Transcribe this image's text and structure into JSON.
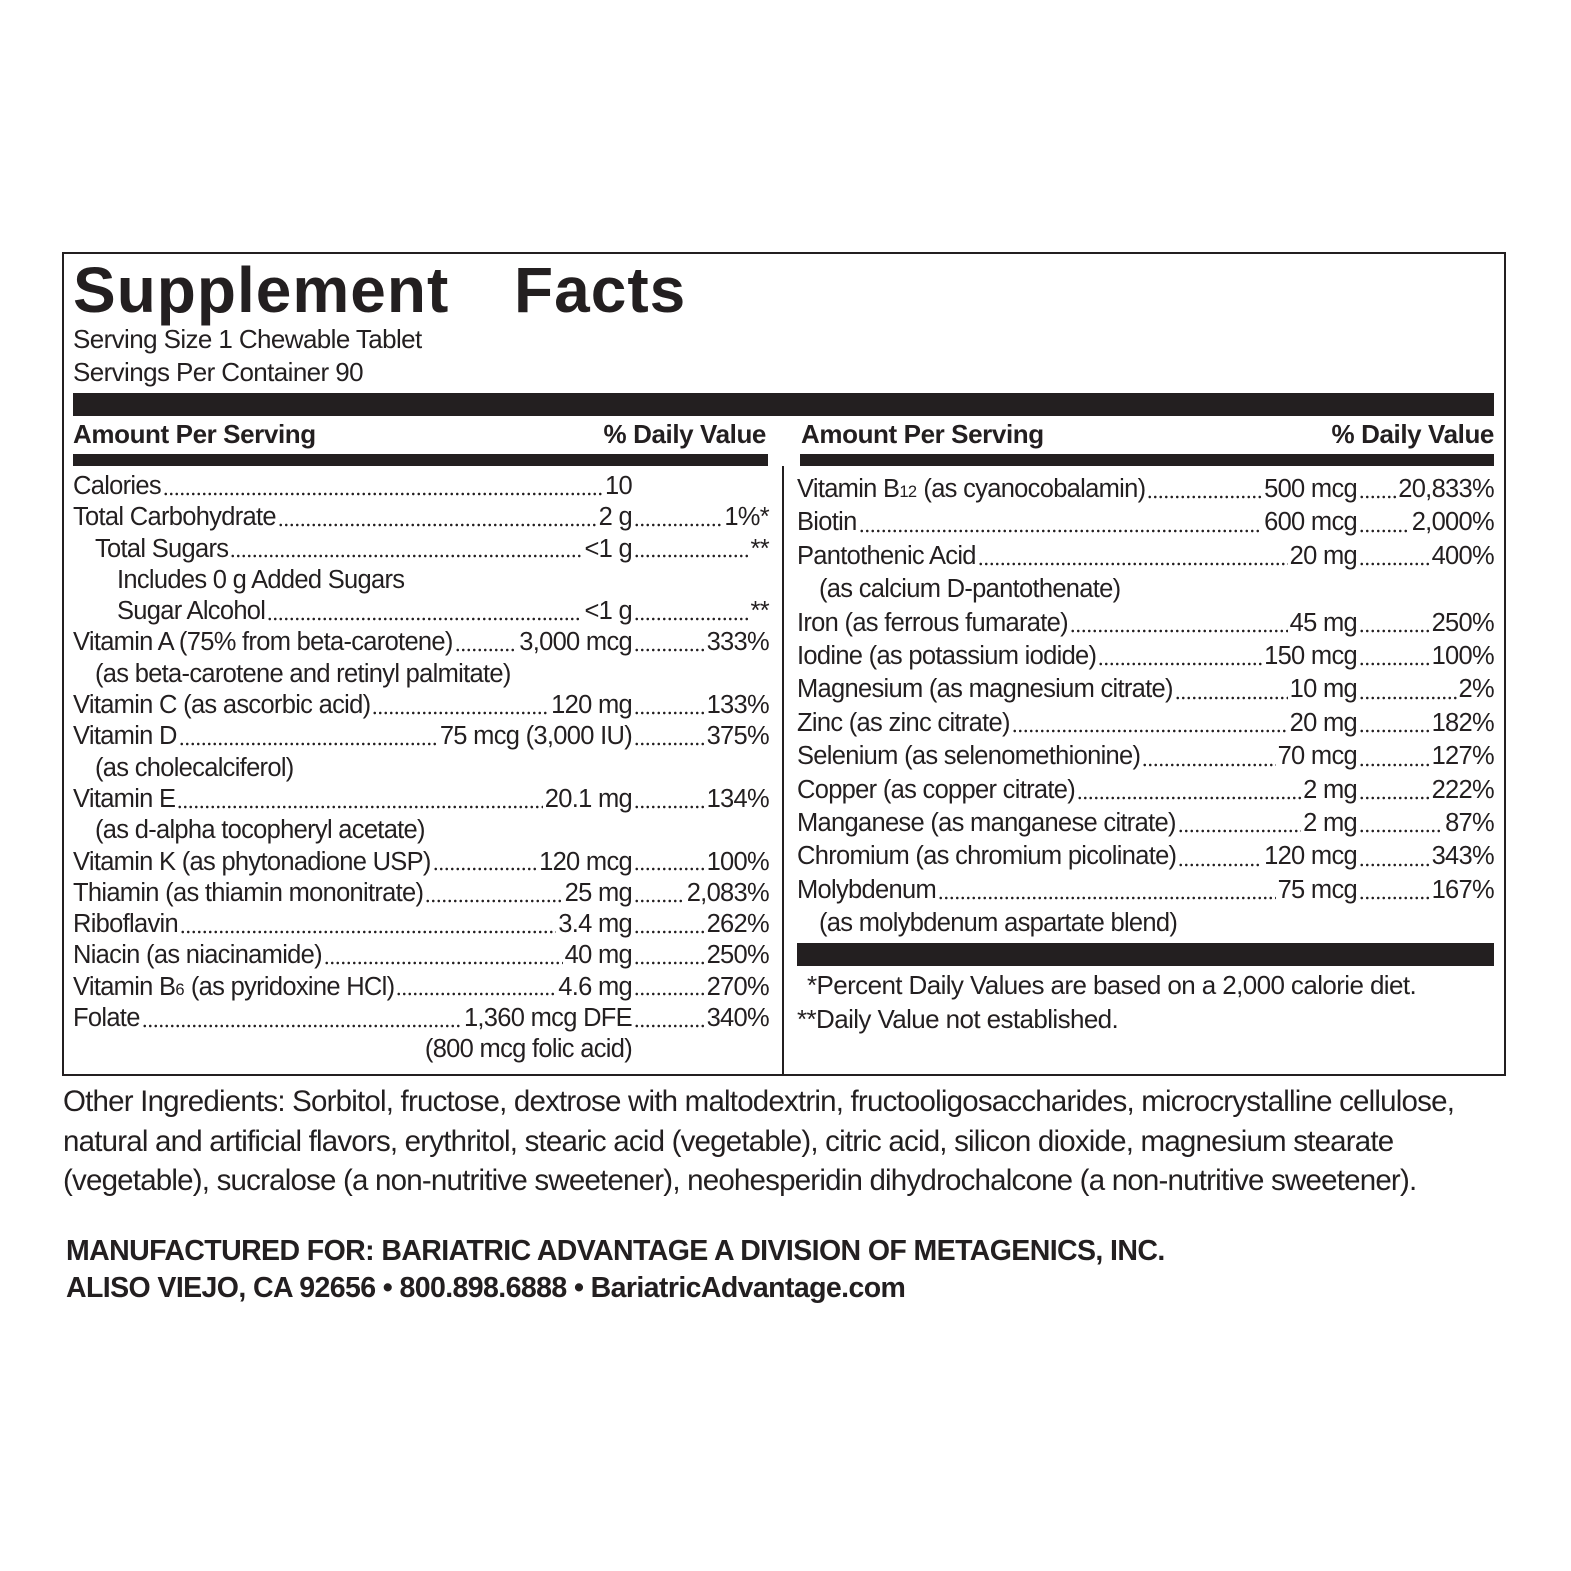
{
  "title": "Supplement Facts",
  "serving_size": "Serving Size 1 Chewable Tablet",
  "servings_per_container": "Servings Per Container 90",
  "left": {
    "header": {
      "amount": "Amount Per Serving",
      "daily_value": "% Daily Value"
    },
    "rows": [
      {
        "name": "Calories",
        "amount": "10"
      },
      {
        "name": "Total Carbohydrate",
        "amount": "2 g",
        "dv": "1%*",
        "sub_rows": [
          {
            "name": "Total Sugars",
            "amount": "<1 g",
            "dv": "**",
            "sub_rows": [
              {
                "name": "Includes 0 g Added Sugars"
              },
              {
                "name": "Sugar Alcohol",
                "amount": "<1 g",
                "dv": "**"
              }
            ]
          }
        ]
      },
      {
        "name": "Vitamin A (75% from beta-carotene)",
        "amount": "3,000 mcg",
        "dv": "333%",
        "note": "(as beta-carotene and retinyl palmitate)"
      },
      {
        "name": "Vitamin C (as ascorbic acid)",
        "amount": "120 mg",
        "dv": "133%"
      },
      {
        "name": "Vitamin D",
        "amount": "75 mcg (3,000 IU)",
        "dv": "375%",
        "note": "(as cholecalciferol)"
      },
      {
        "name": "Vitamin E",
        "amount": "20.1 mg",
        "dv": "134%",
        "note": "(as d-alpha tocopheryl acetate)"
      },
      {
        "name": "Vitamin K (as phytonadione USP)",
        "amount": "120 mcg",
        "dv": "100%"
      },
      {
        "name": "Thiamin (as thiamin mononitrate)",
        "amount": "25 mg",
        "dv": "2,083%"
      },
      {
        "name": "Riboflavin",
        "amount": "3.4 mg",
        "dv": "262%"
      },
      {
        "name": "Niacin (as niacinamide)",
        "amount": "40 mg",
        "dv": "250%"
      },
      {
        "name": "Vitamin B",
        "subscript": "6",
        "detail": "(as pyridoxine HCl)",
        "amount": "4.6 mg",
        "dv": "270%"
      },
      {
        "name": "Folate",
        "amount": "1,360 mcg DFE",
        "dv": "340%",
        "amount_note": "(800 mcg folic acid)"
      }
    ]
  },
  "right": {
    "header": {
      "amount": "Amount Per Serving",
      "daily_value": "% Daily Value"
    },
    "rows": [
      {
        "name": "Vitamin B",
        "subscript": "12",
        "detail": "(as cyanocobalamin)",
        "amount": "500 mcg",
        "dv": "20,833%"
      },
      {
        "name": "Biotin",
        "amount": "600 mcg",
        "dv": "2,000%"
      },
      {
        "name": "Pantothenic Acid",
        "amount": "20 mg",
        "dv": "400%",
        "note": "(as calcium D-pantothenate)"
      },
      {
        "name": "Iron (as ferrous fumarate)",
        "amount": "45 mg",
        "dv": "250%"
      },
      {
        "name": "Iodine (as potassium iodide)",
        "amount": "150 mcg",
        "dv": "100%"
      },
      {
        "name": "Magnesium (as magnesium citrate)",
        "amount": "10 mg",
        "dv": "2%"
      },
      {
        "name": "Zinc (as zinc citrate)",
        "amount": "20 mg",
        "dv": "182%"
      },
      {
        "name": "Selenium (as selenomethionine)",
        "amount": "70 mcg",
        "dv": "127%"
      },
      {
        "name": "Copper (as copper citrate)",
        "amount": "2 mg",
        "dv": "222%"
      },
      {
        "name": "Manganese (as manganese citrate)",
        "amount": "2 mg",
        "dv": "87%"
      },
      {
        "name": "Chromium (as chromium picolinate)",
        "amount": "120 mcg",
        "dv": "343%"
      },
      {
        "name": "Molybdenum",
        "amount": "75 mcg",
        "dv": "167%",
        "note": "(as molybdenum aspartate blend)"
      }
    ]
  },
  "footnotes": [
    "*Percent Daily Values are based on a 2,000 calorie diet.",
    "**Daily Value not established."
  ],
  "other_ingredients": "Other Ingredients: Sorbitol, fructose, dextrose with maltodextrin, fructooligosaccharides, microcrystalline cellulose, natural and artificial flavors, erythritol, stearic acid (vegetable), citric acid, silicon dioxide, magnesium stearate (vegetable), sucralose (a non-nutritive sweetener), neohesperidin dihydrochalcone (a non-nutritive sweetener).",
  "manufacturer": [
    "MANUFACTURED FOR: BARIATRIC ADVANTAGE A DIVISION OF METAGENICS, INC.",
    "ALISO VIEJO, CA 92656 • 800.898.6888 • BariatricAdvantage.com"
  ]
}
